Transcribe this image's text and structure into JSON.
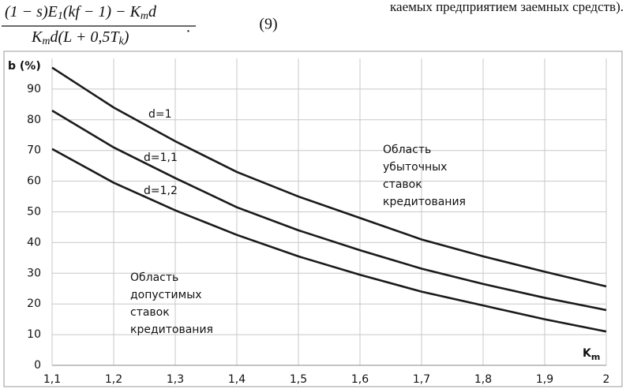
{
  "header": {
    "numerator": [
      "(1 − s)E",
      "1",
      "(kf − 1) − K",
      "m",
      "d"
    ],
    "denominator": [
      "K",
      "m",
      "d(L + 0,5T",
      "k",
      ")"
    ],
    "period": ".",
    "equation_number": "(9)",
    "side_text": "каемых предприятием заемных средств)."
  },
  "chart_data": {
    "type": "line",
    "y_label": "b (%)",
    "x_label": [
      "K",
      "m"
    ],
    "x": [
      1.1,
      1.2,
      1.3,
      1.4,
      1.5,
      1.6,
      1.7,
      1.8,
      1.9,
      2
    ],
    "xlim": [
      1.1,
      2
    ],
    "xticks": [
      {
        "value": 1.1,
        "label": "1,1"
      },
      {
        "value": 1.2,
        "label": "1,2"
      },
      {
        "value": 1.3,
        "label": "1,3"
      },
      {
        "value": 1.4,
        "label": "1,4"
      },
      {
        "value": 1.5,
        "label": "1,5"
      },
      {
        "value": 1.6,
        "label": "1,6"
      },
      {
        "value": 1.7,
        "label": "1,7"
      },
      {
        "value": 1.8,
        "label": "1,8"
      },
      {
        "value": 1.9,
        "label": "1,9"
      },
      2
    ],
    "ylim": [
      0,
      100
    ],
    "yticks": [
      0,
      10,
      20,
      30,
      40,
      50,
      60,
      70,
      80,
      90
    ],
    "grid": true,
    "series": [
      {
        "name": "d=1",
        "color": "#1a1a1a",
        "values": [
          97,
          84,
          73,
          63,
          55,
          48,
          41,
          35.5,
          30.5,
          25.7
        ]
      },
      {
        "name": "d=1,1",
        "color": "#1a1a1a",
        "values": [
          83,
          71,
          61,
          51.5,
          44,
          37.5,
          31.5,
          26.5,
          22,
          18
        ]
      },
      {
        "name": "d=1,2",
        "color": "#1a1a1a",
        "values": [
          70.5,
          59.5,
          50.5,
          42.5,
          35.5,
          29.5,
          24,
          19.5,
          15,
          11
        ]
      }
    ],
    "annotations": [
      [
        "Область",
        "убыточных",
        "ставок",
        "кредитования"
      ],
      [
        "Область",
        "допустимых",
        "ставок",
        "кредитования"
      ]
    ]
  }
}
